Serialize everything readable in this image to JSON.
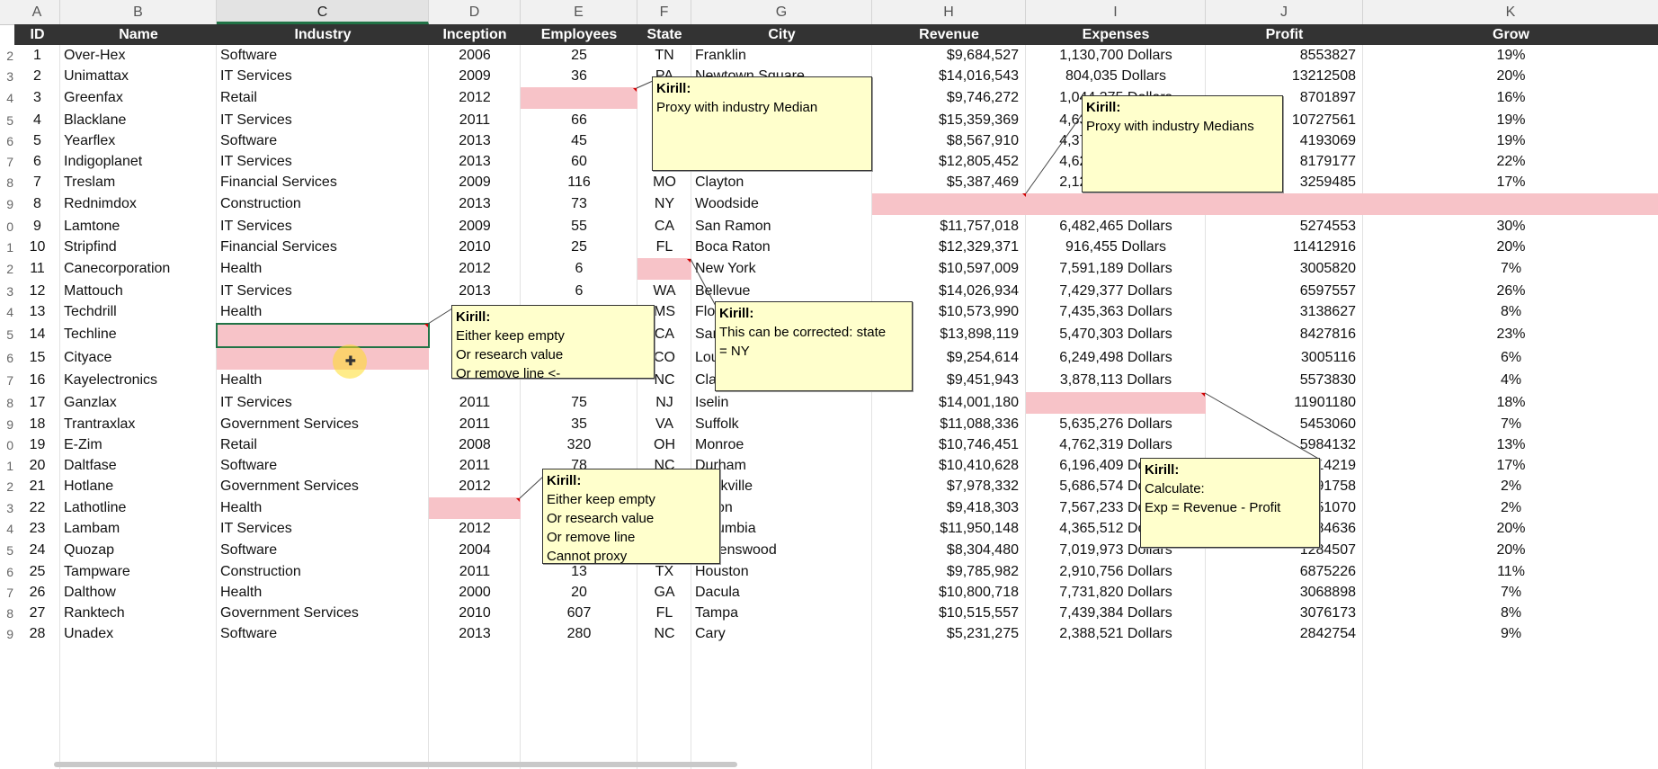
{
  "columns": [
    {
      "letter": "A",
      "header": "ID"
    },
    {
      "letter": "B",
      "header": "Name"
    },
    {
      "letter": "C",
      "header": "Industry"
    },
    {
      "letter": "D",
      "header": "Inception"
    },
    {
      "letter": "E",
      "header": "Employees"
    },
    {
      "letter": "F",
      "header": "State"
    },
    {
      "letter": "G",
      "header": "City"
    },
    {
      "letter": "H",
      "header": "Revenue"
    },
    {
      "letter": "I",
      "header": "Expenses"
    },
    {
      "letter": "J",
      "header": "Profit"
    },
    {
      "letter": "K",
      "header": "Grow"
    }
  ],
  "row_numbers": [
    "2",
    "3",
    "4",
    "5",
    "6",
    "7",
    "8",
    "9",
    "0",
    "1",
    "2",
    "3",
    "4",
    "5",
    "6",
    "7",
    "8",
    "9",
    "0",
    "1",
    "2",
    "3",
    "4",
    "5",
    "6",
    "7",
    "8",
    "9"
  ],
  "rows": [
    [
      "1",
      "Over-Hex",
      "Software",
      "2006",
      "25",
      "TN",
      "Franklin",
      "$9,684,527",
      "1,130,700 Dollars",
      "8553827",
      "19%"
    ],
    [
      "2",
      "Unimattax",
      "IT Services",
      "2009",
      "36",
      "PA",
      "Newtown Square",
      "$14,016,543",
      "804,035 Dollars",
      "13212508",
      "20%"
    ],
    [
      "3",
      "Greenfax",
      "Retail",
      "2012",
      "",
      "",
      "",
      "$9,746,272",
      "1,044,375 Dollars",
      "8701897",
      "16%"
    ],
    [
      "4",
      "Blacklane",
      "IT Services",
      "2011",
      "66",
      "",
      "",
      "$15,359,369",
      "4,631,808 Dollars",
      "10727561",
      "19%"
    ],
    [
      "5",
      "Yearflex",
      "Software",
      "2013",
      "45",
      "",
      "",
      "$8,567,910",
      "4,374,841 Dollars",
      "4193069",
      "19%"
    ],
    [
      "6",
      "Indigoplanet",
      "IT Services",
      "2013",
      "60",
      "",
      "",
      "$12,805,452",
      "4,626,275 Dollars",
      "8179177",
      "22%"
    ],
    [
      "7",
      "Treslam",
      "Financial Services",
      "2009",
      "116",
      "MO",
      "Clayton",
      "$5,387,469",
      "2,127,984 Dollars",
      "3259485",
      "17%"
    ],
    [
      "8",
      "Rednimdox",
      "Construction",
      "2013",
      "73",
      "NY",
      "Woodside",
      "",
      "",
      "",
      ""
    ],
    [
      "9",
      "Lamtone",
      "IT Services",
      "2009",
      "55",
      "CA",
      "San Ramon",
      "$11,757,018",
      "6,482,465 Dollars",
      "5274553",
      "30%"
    ],
    [
      "10",
      "Stripfind",
      "Financial Services",
      "2010",
      "25",
      "FL",
      "Boca Raton",
      "$12,329,371",
      "916,455 Dollars",
      "11412916",
      "20%"
    ],
    [
      "11",
      "Canecorporation",
      "Health",
      "2012",
      "6",
      "",
      "New York",
      "$10,597,009",
      "7,591,189 Dollars",
      "3005820",
      "7%"
    ],
    [
      "12",
      "Mattouch",
      "IT Services",
      "2013",
      "6",
      "WA",
      "Bellevue",
      "$14,026,934",
      "7,429,377 Dollars",
      "6597557",
      "26%"
    ],
    [
      "13",
      "Techdrill",
      "Health",
      "",
      "",
      "MS",
      "Flowood",
      "$10,573,990",
      "7,435,363 Dollars",
      "3138627",
      "8%"
    ],
    [
      "14",
      "Techline",
      "",
      "",
      "",
      "CA",
      "San Ramon",
      "$13,898,119",
      "5,470,303 Dollars",
      "8427816",
      "23%"
    ],
    [
      "15",
      "Cityace",
      "",
      "",
      "",
      "CO",
      "Louisville",
      "$9,254,614",
      "6,249,498 Dollars",
      "3005116",
      "6%"
    ],
    [
      "16",
      "Kayelectronics",
      "Health",
      "",
      "",
      "NC",
      "Clayton",
      "$9,451,943",
      "3,878,113 Dollars",
      "5573830",
      "4%"
    ],
    [
      "17",
      "Ganzlax",
      "IT Services",
      "2011",
      "75",
      "NJ",
      "Iselin",
      "$14,001,180",
      "",
      "11901180",
      "18%"
    ],
    [
      "18",
      "Trantraxlax",
      "Government Services",
      "2011",
      "35",
      "VA",
      "Suffolk",
      "$11,088,336",
      "5,635,276 Dollars",
      "5453060",
      "7%"
    ],
    [
      "19",
      "E-Zim",
      "Retail",
      "2008",
      "320",
      "OH",
      "Monroe",
      "$10,746,451",
      "4,762,319 Dollars",
      "5984132",
      "13%"
    ],
    [
      "20",
      "Daltfase",
      "Software",
      "2011",
      "78",
      "NC",
      "Durham",
      "$10,410,628",
      "6,196,409 Dollars",
      "4214219",
      "17%"
    ],
    [
      "21",
      "Hotlane",
      "Government Services",
      "2012",
      "",
      "",
      "Rockville",
      "$7,978,332",
      "5,686,574 Dollars",
      "2291758",
      "2%"
    ],
    [
      "22",
      "Lathotline",
      "Health",
      "",
      "",
      "",
      "Akron",
      "$9,418,303",
      "7,567,233 Dollars",
      "1851070",
      "2%"
    ],
    [
      "23",
      "Lambam",
      "IT Services",
      "2012",
      "",
      "",
      "Columbia",
      "$11,950,148",
      "4,365,512 Dollars",
      "7584636",
      "20%"
    ],
    [
      "24",
      "Quozap",
      "Software",
      "2004",
      "",
      "",
      "Greenswood",
      "$8,304,480",
      "7,019,973 Dollars",
      "1284507",
      "20%"
    ],
    [
      "25",
      "Tampware",
      "Construction",
      "2011",
      "13",
      "TX",
      "Houston",
      "$9,785,982",
      "2,910,756 Dollars",
      "6875226",
      "11%"
    ],
    [
      "26",
      "Dalthow",
      "Health",
      "2000",
      "20",
      "GA",
      "Dacula",
      "$10,800,718",
      "7,731,820 Dollars",
      "3068898",
      "7%"
    ],
    [
      "27",
      "Ranktech",
      "Government Services",
      "2010",
      "607",
      "FL",
      "Tampa",
      "$10,515,557",
      "7,439,384 Dollars",
      "3076173",
      "8%"
    ],
    [
      "28",
      "Unadex",
      "Software",
      "2013",
      "280",
      "NC",
      "Cary",
      "$5,231,275",
      "2,388,521 Dollars",
      "2842754",
      "9%"
    ]
  ],
  "comments": [
    {
      "author": "Kirill:",
      "text": "Proxy with industry Median"
    },
    {
      "author": "Kirill:",
      "text": "Proxy with industry Medians"
    },
    {
      "author": "Kirill:",
      "text": "Either keep empty\nOr research value\nOr remove line <-"
    },
    {
      "author": "Kirill:",
      "text": "This can be corrected: state\n= NY"
    },
    {
      "author": "Kirill:",
      "text": "Either keep empty\nOr research value\nOr remove line\nCannot proxy"
    },
    {
      "author": "Kirill:",
      "text": "Calculate:\nExp = Revenue - Profit"
    }
  ],
  "colors": {
    "header_bg": "#333333",
    "missing": "#f7c3c8",
    "note_bg": "#ffffcc",
    "selection": "#217346"
  }
}
